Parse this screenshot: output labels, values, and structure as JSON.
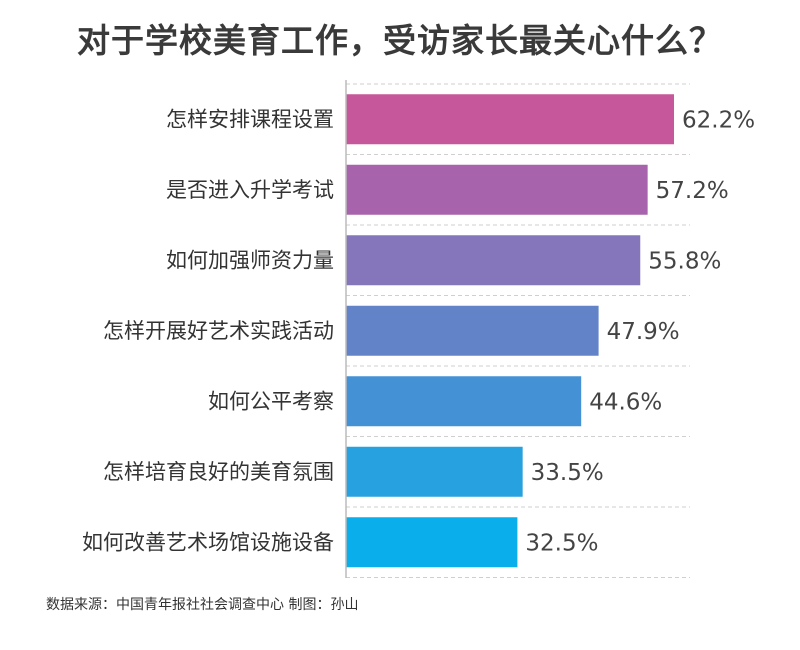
{
  "title": "对于学校美育工作，受访家长最关心什么？",
  "source": "数据来源：中国青年报社社会调查中心 制图：孙山",
  "chart_data": {
    "type": "bar",
    "orientation": "horizontal",
    "title": "对于学校美育工作，受访家长最关心什么？",
    "categories": [
      "怎样安排课程设置",
      "是否进入升学考试",
      "如何加强师资力量",
      "怎样开展好艺术实践活动",
      "如何公平考察",
      "怎样培育良好的美育氛围",
      "如何改善艺术场馆设施设备"
    ],
    "values": [
      62.2,
      57.2,
      55.8,
      47.9,
      44.6,
      33.5,
      32.5
    ],
    "labels": [
      "62.2%",
      "57.2%",
      "55.8%",
      "47.9%",
      "44.6%",
      "33.5%",
      "32.5%"
    ],
    "colors": [
      "#c6579a",
      "#a764ac",
      "#8576bb",
      "#6383c8",
      "#4591d6",
      "#27a1df",
      "#0aaeeb"
    ],
    "xlim": [
      0,
      62.2
    ],
    "grid": true,
    "legend": false
  }
}
